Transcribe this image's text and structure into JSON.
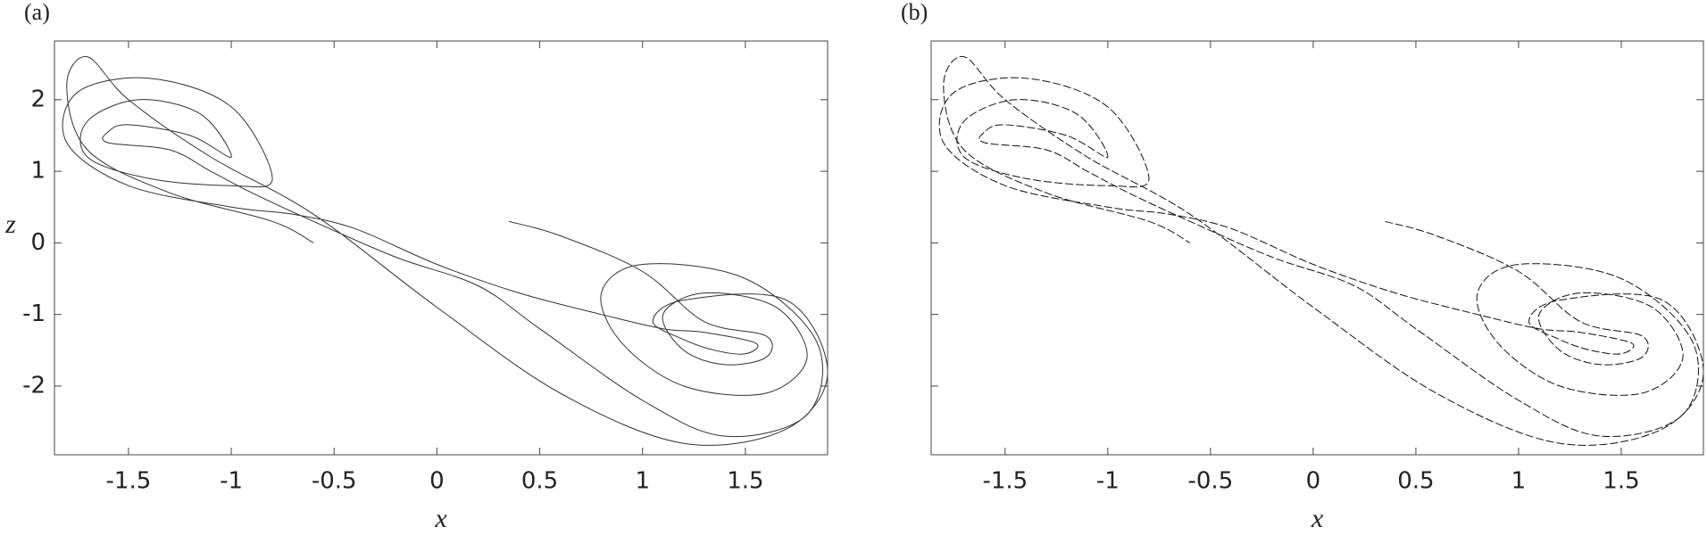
{
  "chart_data": [
    {
      "type": "line",
      "label": "(a)",
      "xlabel": "x",
      "ylabel": "z",
      "xlim": [
        -1.86,
        1.9
      ],
      "ylim": [
        -2.96,
        2.82
      ],
      "xticks": [
        -1.5,
        -1,
        -0.5,
        0,
        0.5,
        1,
        1.5
      ],
      "yticks": [
        -2,
        -1,
        0,
        1,
        2
      ],
      "ytick_labels": true,
      "line_style": "solid",
      "series": [
        {
          "color": "#333333",
          "x": [
            0.35,
            0.6,
            1.0,
            1.3,
            1.6,
            1.6,
            1.4,
            1.2,
            1.1,
            1.3,
            1.65,
            1.8,
            1.6,
            1.2,
            0.9,
            0.8,
            1.0,
            1.5,
            1.85,
            1.8,
            1.4,
            1.0,
            0.5,
            0.2,
            -0.2,
            -0.6,
            -0.9,
            -1.1,
            -1.3,
            -1.6,
            -1.6,
            -1.5,
            -1.2,
            -1.0,
            -1.15,
            -1.45,
            -1.7,
            -1.7,
            -1.4,
            -1.0,
            -0.8,
            -1.0,
            -1.4,
            -1.75,
            -1.8,
            -1.5,
            -1.0,
            -0.7,
            -0.4,
            0.0,
            0.4,
            0.8,
            1.1,
            1.3,
            1.55,
            1.5,
            1.35,
            1.2,
            1.05,
            1.2,
            1.7,
            1.9,
            1.7,
            1.2,
            0.6,
            0.0,
            -0.6,
            -1.1,
            -1.5,
            -1.7,
            -1.8,
            -1.7,
            -1.3,
            -0.8,
            -0.6
          ],
          "y": [
            0.3,
            0.1,
            -0.4,
            -1.1,
            -1.3,
            -1.6,
            -1.7,
            -1.5,
            -1.0,
            -0.7,
            -0.9,
            -1.6,
            -2.1,
            -2.0,
            -1.4,
            -0.7,
            -0.3,
            -0.5,
            -1.4,
            -2.4,
            -2.7,
            -2.2,
            -1.2,
            -0.6,
            -0.2,
            0.3,
            0.7,
            1.0,
            1.3,
            1.4,
            1.55,
            1.65,
            1.5,
            1.2,
            1.8,
            2.0,
            1.7,
            1.2,
            0.9,
            0.8,
            0.9,
            1.9,
            2.3,
            2.1,
            1.4,
            0.8,
            0.5,
            0.4,
            0.2,
            -0.3,
            -0.7,
            -1.0,
            -1.2,
            -1.25,
            -1.4,
            -1.55,
            -1.5,
            -1.35,
            -1.1,
            -0.8,
            -0.8,
            -1.8,
            -2.6,
            -2.8,
            -2.1,
            -0.9,
            0.4,
            1.2,
            2.0,
            2.6,
            2.2,
            1.3,
            0.7,
            0.3,
            0.0
          ]
        }
      ]
    },
    {
      "type": "line",
      "label": "(b)",
      "xlabel": "x",
      "xlim": [
        -1.86,
        1.9
      ],
      "ylim": [
        -2.96,
        2.82
      ],
      "xticks": [
        -1.5,
        -1,
        -0.5,
        0,
        0.5,
        1,
        1.5
      ],
      "yticks": [
        -2,
        -1,
        0,
        1,
        2
      ],
      "ytick_labels": false,
      "line_style": "dashed",
      "series": [
        {
          "color": "#111111",
          "x": [
            0.35,
            0.6,
            1.0,
            1.3,
            1.6,
            1.6,
            1.4,
            1.2,
            1.1,
            1.3,
            1.65,
            1.8,
            1.6,
            1.2,
            0.9,
            0.8,
            1.0,
            1.5,
            1.85,
            1.8,
            1.4,
            1.0,
            0.5,
            0.2,
            -0.2,
            -0.6,
            -0.9,
            -1.1,
            -1.3,
            -1.6,
            -1.6,
            -1.5,
            -1.2,
            -1.0,
            -1.15,
            -1.45,
            -1.7,
            -1.7,
            -1.4,
            -1.0,
            -0.8,
            -1.0,
            -1.4,
            -1.75,
            -1.8,
            -1.5,
            -1.0,
            -0.7,
            -0.4,
            0.0,
            0.4,
            0.8,
            1.1,
            1.3,
            1.55,
            1.5,
            1.35,
            1.2,
            1.05,
            1.2,
            1.7,
            1.9,
            1.7,
            1.2,
            0.6,
            0.0,
            -0.6,
            -1.1,
            -1.5,
            -1.7,
            -1.8,
            -1.7,
            -1.3,
            -0.8,
            -0.6
          ],
          "y": [
            0.3,
            0.1,
            -0.4,
            -1.1,
            -1.3,
            -1.6,
            -1.7,
            -1.5,
            -1.0,
            -0.7,
            -0.9,
            -1.6,
            -2.1,
            -2.0,
            -1.4,
            -0.7,
            -0.3,
            -0.5,
            -1.4,
            -2.4,
            -2.7,
            -2.2,
            -1.2,
            -0.6,
            -0.2,
            0.3,
            0.7,
            1.0,
            1.3,
            1.4,
            1.55,
            1.65,
            1.5,
            1.2,
            1.8,
            2.0,
            1.7,
            1.2,
            0.9,
            0.8,
            0.9,
            1.9,
            2.3,
            2.1,
            1.4,
            0.8,
            0.5,
            0.4,
            0.2,
            -0.3,
            -0.7,
            -1.0,
            -1.2,
            -1.25,
            -1.4,
            -1.55,
            -1.5,
            -1.35,
            -1.1,
            -0.8,
            -0.8,
            -1.8,
            -2.6,
            -2.8,
            -2.1,
            -0.9,
            0.4,
            1.2,
            2.0,
            2.6,
            2.2,
            1.3,
            0.7,
            0.3,
            0.0
          ]
        }
      ]
    }
  ]
}
